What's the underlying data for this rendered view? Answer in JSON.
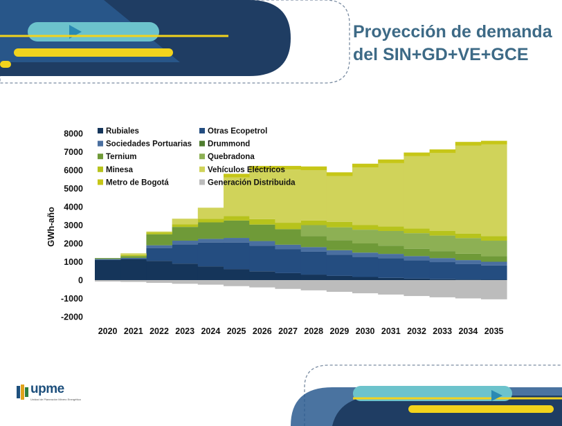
{
  "title": {
    "line1": "Proyección de demanda",
    "line2": "del SIN+GD+VE+GCE"
  },
  "logo": {
    "word": "upme",
    "tagline": "Unidad de Planeación Minero Energética"
  },
  "colors": {
    "title": "#3d6a86",
    "deco_navy": "#1f3d63",
    "deco_teal": "#6cc3cc",
    "deco_yellow": "#f2d31c"
  },
  "chart_data": {
    "type": "area",
    "stacked": true,
    "ylabel": "GWh-año",
    "xlabel": "",
    "ylim": [
      -2000,
      8000
    ],
    "yticks": [
      -2000,
      -1000,
      0,
      1000,
      2000,
      3000,
      4000,
      5000,
      6000,
      7000,
      8000
    ],
    "grid": false,
    "legend_position": "top-left",
    "categories": [
      "2020",
      "2021",
      "2022",
      "2023",
      "2024",
      "2025",
      "2026",
      "2027",
      "2028",
      "2029",
      "2030",
      "2031",
      "2032",
      "2033",
      "2034",
      "2035"
    ],
    "series": [
      {
        "name": "Rubiales",
        "color": "#15355a",
        "values": [
          1100,
          1150,
          1050,
          900,
          750,
          600,
          480,
          380,
          300,
          230,
          170,
          120,
          80,
          50,
          30,
          20
        ]
      },
      {
        "name": "Otras Ecopetrol",
        "color": "#244d80",
        "values": [
          0,
          0,
          700,
          1050,
          1300,
          1450,
          1400,
          1300,
          1250,
          1150,
          1100,
          1080,
          1000,
          930,
          840,
          780
        ]
      },
      {
        "name": "Sociedades Portuarias",
        "color": "#4a6fa0",
        "values": [
          50,
          60,
          150,
          200,
          200,
          250,
          250,
          250,
          250,
          250,
          230,
          230,
          230,
          220,
          220,
          200
        ]
      },
      {
        "name": "Drummond",
        "color": "#4f7d2f",
        "values": [
          0,
          0,
          0,
          0,
          0,
          0,
          0,
          0,
          0,
          0,
          0,
          0,
          0,
          0,
          0,
          0
        ]
      },
      {
        "name": "Ternium",
        "color": "#6f9a38",
        "values": [
          50,
          100,
          600,
          750,
          900,
          950,
          900,
          850,
          600,
          550,
          500,
          450,
          400,
          380,
          350,
          300
        ]
      },
      {
        "name": "Quebradona",
        "color": "#8db054",
        "values": [
          0,
          0,
          0,
          0,
          0,
          0,
          0,
          0,
          600,
          700,
          750,
          800,
          850,
          850,
          850,
          850
        ]
      },
      {
        "name": "Minesa",
        "color": "#b7c31c",
        "values": [
          0,
          50,
          100,
          150,
          200,
          250,
          300,
          350,
          250,
          300,
          250,
          250,
          250,
          250,
          250,
          250
        ]
      },
      {
        "name": "Vehículos Eléctricos",
        "color": "#d0d35a",
        "values": [
          0,
          100,
          50,
          300,
          600,
          2100,
          2700,
          2900,
          2750,
          2500,
          3150,
          3450,
          3950,
          4250,
          4800,
          5000
        ]
      },
      {
        "name": "Metro de Bogotá",
        "color": "#c6c617",
        "values": [
          0,
          0,
          0,
          0,
          0,
          200,
          200,
          200,
          200,
          200,
          200,
          200,
          200,
          200,
          200,
          200
        ]
      },
      {
        "name": "Generación Distribuida",
        "color": "#bcbcbc",
        "values": [
          -80,
          -100,
          -150,
          -200,
          -250,
          -330,
          -400,
          -480,
          -560,
          -640,
          -720,
          -790,
          -870,
          -940,
          -1000,
          -1050
        ]
      }
    ]
  }
}
